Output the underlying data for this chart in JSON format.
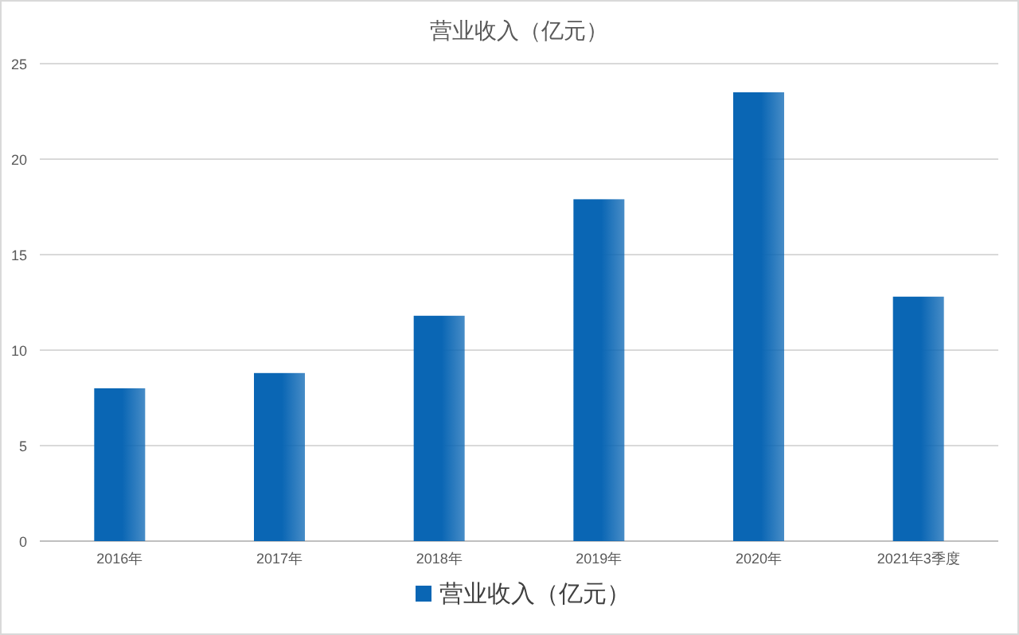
{
  "chart_data": {
    "type": "bar",
    "title": "营业收入（亿元）",
    "categories": [
      "2016年",
      "2017年",
      "2018年",
      "2019年",
      "2020年",
      "2021年3季度"
    ],
    "series": [
      {
        "name": "营业收入（亿元）",
        "color": "#0a66b4",
        "values": [
          8.0,
          8.8,
          11.8,
          17.9,
          23.5,
          12.8
        ]
      }
    ],
    "ylim": [
      0,
      25
    ],
    "yticks": [
      0,
      5,
      10,
      15,
      20,
      25
    ],
    "grid": "y",
    "legend": "bottom"
  }
}
